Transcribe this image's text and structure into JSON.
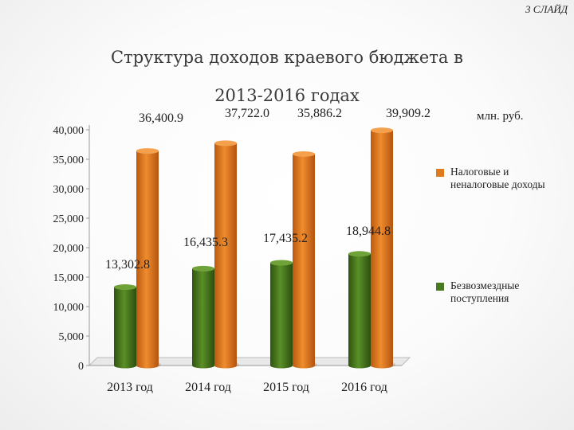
{
  "slide_label": "3 СЛАЙД",
  "title_line1": "Структура доходов краевого бюджета в",
  "title_line2": "2013-2016 годах",
  "units": "млн. руб.",
  "chart_data": {
    "type": "bar",
    "categories": [
      "2013 год",
      "2014 год",
      "2015 год",
      "2016 год"
    ],
    "series": [
      {
        "name": "Безвозмездные поступления",
        "values": [
          13302.8,
          16435.3,
          17435.2,
          18944.8
        ],
        "labels": [
          "13,302.8",
          "16,435.3",
          "17,435.2",
          "18,944.8"
        ],
        "color": "#4a7a1f"
      },
      {
        "name": "Налоговые и неналоговые доходы",
        "values": [
          36400.9,
          37722.0,
          35886.2,
          39909.2
        ],
        "labels": [
          "36,400.9",
          "37,722.0",
          "35,886.2",
          "39,909.2"
        ],
        "color": "#e07a1f"
      }
    ],
    "ylim": [
      0,
      40000
    ],
    "yticks": [
      0,
      5000,
      10000,
      15000,
      20000,
      25000,
      30000,
      35000,
      40000
    ],
    "ytick_labels": [
      "0",
      "5,000",
      "10,000",
      "15,000",
      "20,000",
      "25,000",
      "30,000",
      "35,000",
      "40,000"
    ],
    "legend": "right"
  }
}
